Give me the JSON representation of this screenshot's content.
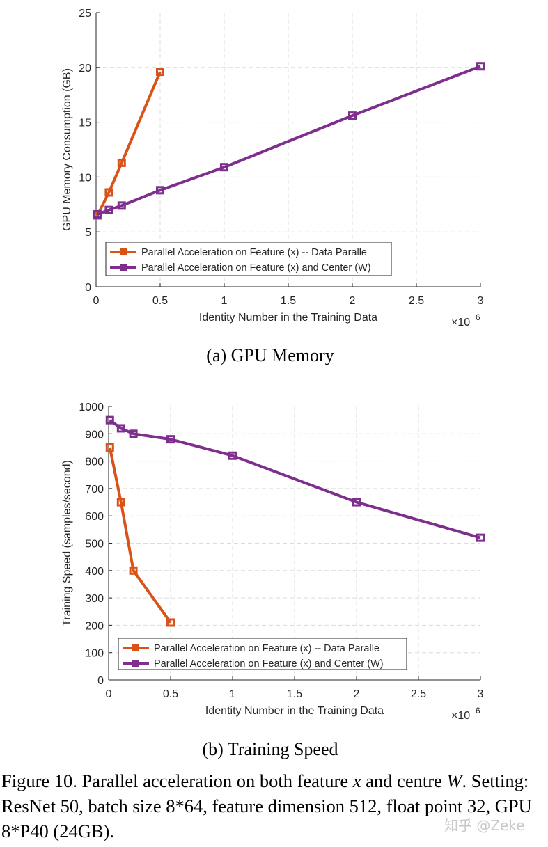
{
  "chart_data": [
    {
      "type": "line",
      "title": "",
      "xlabel": "Identity Number in the Training Data",
      "ylabel": "GPU Memory Consumption (GB)",
      "x_multiplier": "×10",
      "x_multiplier_exp": "6",
      "xlim": [
        0,
        3
      ],
      "ylim": [
        0,
        25
      ],
      "xticks": [
        0,
        0.5,
        1,
        1.5,
        2,
        2.5,
        3
      ],
      "xtick_labels": [
        "0",
        "0.5",
        "1",
        "1.5",
        "2",
        "2.5",
        "3"
      ],
      "yticks": [
        0,
        5,
        10,
        15,
        20,
        25
      ],
      "ytick_labels": [
        "0",
        "5",
        "10",
        "15",
        "20",
        "25"
      ],
      "grid": true,
      "legend_position": "bottom-left",
      "subcaption": "(a)  GPU Memory",
      "series": [
        {
          "name": "Parallel Acceleration on Feature (x) -- Data Paralle",
          "color": "#d95319",
          "x": [
            0.01,
            0.1,
            0.2,
            0.5
          ],
          "y": [
            6.5,
            8.6,
            11.3,
            19.6
          ]
        },
        {
          "name": "Parallel Acceleration on Feature (x) and Center (W)",
          "color": "#7e2f8e",
          "x": [
            0.01,
            0.1,
            0.2,
            0.5,
            1,
            2,
            3
          ],
          "y": [
            6.6,
            7.0,
            7.4,
            8.8,
            10.9,
            15.6,
            20.1
          ]
        }
      ]
    },
    {
      "type": "line",
      "title": "",
      "xlabel": "Identity Number in the Training Data",
      "ylabel": "Training Speed (samples/second)",
      "x_multiplier": "×10",
      "x_multiplier_exp": "6",
      "xlim": [
        0,
        3
      ],
      "ylim": [
        0,
        1000
      ],
      "xticks": [
        0,
        0.5,
        1,
        1.5,
        2,
        2.5,
        3
      ],
      "xtick_labels": [
        "0",
        "0.5",
        "1",
        "1.5",
        "2",
        "2.5",
        "3"
      ],
      "yticks": [
        0,
        100,
        200,
        300,
        400,
        500,
        600,
        700,
        800,
        900,
        1000
      ],
      "ytick_labels": [
        "0",
        "100",
        "200",
        "300",
        "400",
        "500",
        "600",
        "700",
        "800",
        "900",
        "1000"
      ],
      "grid": true,
      "legend_position": "bottom-left",
      "subcaption": "(b)  Training Speed",
      "series": [
        {
          "name": "Parallel Acceleration on Feature (x) -- Data Paralle",
          "color": "#d95319",
          "x": [
            0.01,
            0.1,
            0.2,
            0.5
          ],
          "y": [
            850,
            650,
            400,
            210
          ]
        },
        {
          "name": "Parallel Acceleration on Feature (x) and Center (W)",
          "color": "#7e2f8e",
          "x": [
            0.01,
            0.1,
            0.2,
            0.5,
            1,
            2,
            3
          ],
          "y": [
            950,
            920,
            900,
            880,
            820,
            650,
            520
          ]
        }
      ]
    }
  ],
  "figure_caption": {
    "prefix": "Figure 10. Parallel acceleration on both feature ",
    "var_x": "x",
    "middle": " and centre ",
    "var_w": "W",
    "suffix": ".",
    "line2": "Setting: ResNet 50, batch size 8*64, feature dimension 512, float point 32, GPU 8*P40 (24GB)."
  },
  "watermark": "知乎 @Zeke"
}
